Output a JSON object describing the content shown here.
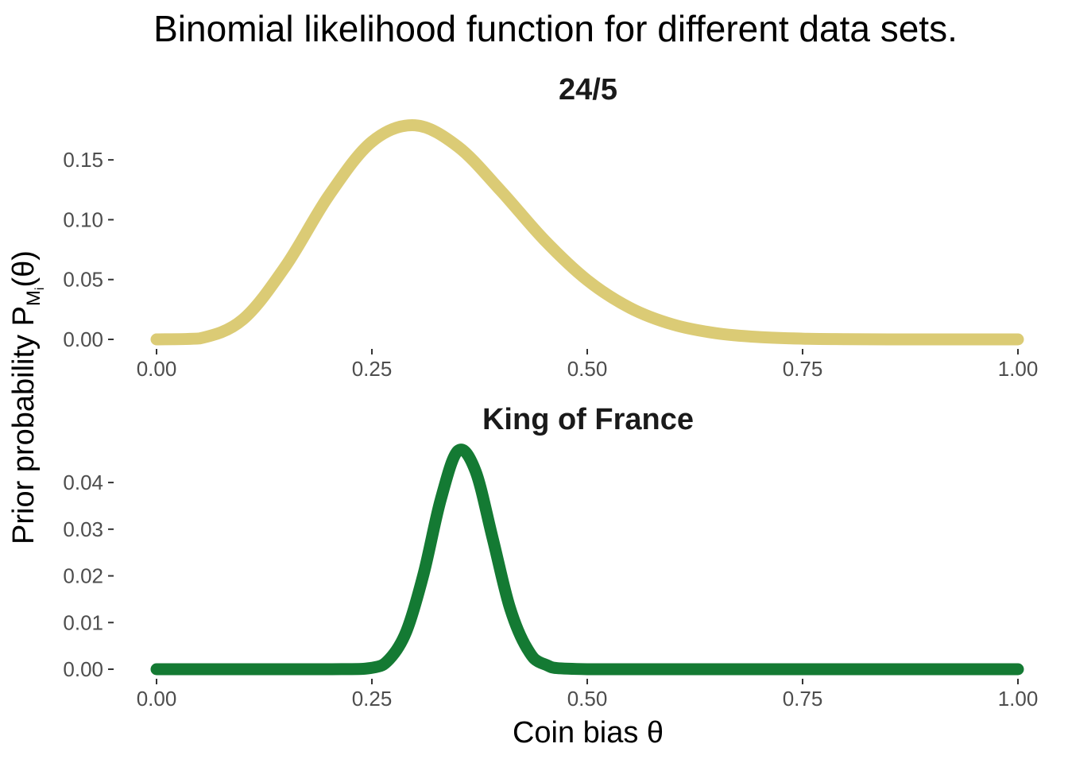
{
  "chart_data": {
    "type": "line",
    "title": "Binomial likelihood function for different data sets.",
    "xlabel": "Coin bias θ",
    "ylabel": {
      "main": "Prior probability P",
      "sub": "M",
      "subsub": "i",
      "suffix": "(θ)"
    },
    "panels": [
      {
        "name": "24/5",
        "color": "#dbcb75",
        "xlim": [
          0,
          1
        ],
        "ylim": [
          0,
          0.18
        ],
        "x_ticks": [
          "0.00",
          "0.25",
          "0.50",
          "0.75",
          "1.00"
        ],
        "y_ticks": [
          "0.00",
          "0.05",
          "0.10",
          "0.15"
        ],
        "y_tick_values": [
          0,
          0.05,
          0.1,
          0.15
        ],
        "x": [
          0.0,
          0.05,
          0.1,
          0.15,
          0.2,
          0.25,
          0.3,
          0.35,
          0.4,
          0.45,
          0.5,
          0.55,
          0.6,
          0.65,
          0.7,
          0.75,
          0.8,
          0.85,
          0.9,
          0.95,
          1.0
        ],
        "y": [
          0.0,
          0.0008,
          0.0165,
          0.0614,
          0.1201,
          0.1652,
          0.1789,
          0.161,
          0.1239,
          0.0832,
          0.0495,
          0.0262,
          0.0123,
          0.0051,
          0.0019,
          0.0006,
          0.0002,
          0.0,
          0.0,
          0.0,
          0.0
        ]
      },
      {
        "name": "King of France",
        "color": "#147a33",
        "xlim": [
          0,
          1
        ],
        "ylim": [
          0,
          0.047
        ],
        "x_ticks": [
          "0.00",
          "0.25",
          "0.50",
          "0.75",
          "1.00"
        ],
        "y_ticks": [
          "0.00",
          "0.01",
          "0.02",
          "0.03",
          "0.04"
        ],
        "y_tick_values": [
          0,
          0.01,
          0.02,
          0.03,
          0.04
        ],
        "x": [
          0.0,
          0.2,
          0.25,
          0.27,
          0.29,
          0.31,
          0.33,
          0.35,
          0.37,
          0.39,
          0.41,
          0.43,
          0.45,
          0.5,
          0.75,
          1.0
        ],
        "y": [
          0.0,
          0.0,
          0.0003,
          0.0021,
          0.0081,
          0.0204,
          0.0364,
          0.0468,
          0.0426,
          0.0282,
          0.0133,
          0.0045,
          0.0011,
          0.0,
          0.0,
          0.0
        ]
      }
    ]
  }
}
